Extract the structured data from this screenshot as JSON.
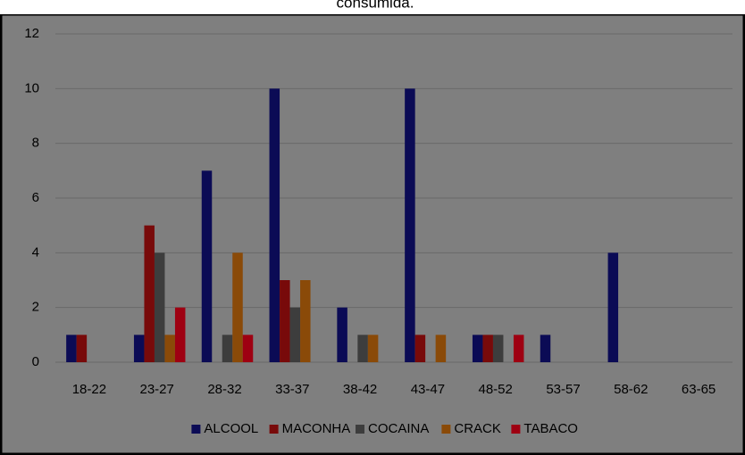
{
  "chart_data": {
    "type": "bar",
    "title": "consumida.",
    "categories": [
      "18-22",
      "23-27",
      "28-32",
      "33-37",
      "38-42",
      "43-47",
      "48-52",
      "53-57",
      "58-62",
      "63-65"
    ],
    "series": [
      {
        "name": "ALCOOL",
        "color": "#0b0b55",
        "values": [
          1,
          1,
          7,
          10,
          2,
          10,
          1,
          1,
          4,
          0
        ]
      },
      {
        "name": "MACONHA",
        "color": "#780a0a",
        "values": [
          1,
          5,
          0,
          3,
          0,
          1,
          1,
          0,
          0,
          0
        ]
      },
      {
        "name": "COCAINA",
        "color": "#3d3d3d",
        "values": [
          0,
          4,
          1,
          2,
          1,
          0,
          1,
          0,
          0,
          0
        ]
      },
      {
        "name": "CRACK",
        "color": "#8a4a08",
        "values": [
          0,
          1,
          4,
          3,
          1,
          1,
          0,
          0,
          0,
          0
        ]
      },
      {
        "name": "TABACO",
        "color": "#9e0012",
        "values": [
          0,
          2,
          1,
          0,
          0,
          0,
          1,
          0,
          0,
          0
        ]
      }
    ],
    "ylim": [
      0,
      12
    ],
    "yticks": [
      0,
      2,
      4,
      6,
      8,
      10,
      12
    ],
    "grid": true,
    "legend": "bottom"
  }
}
